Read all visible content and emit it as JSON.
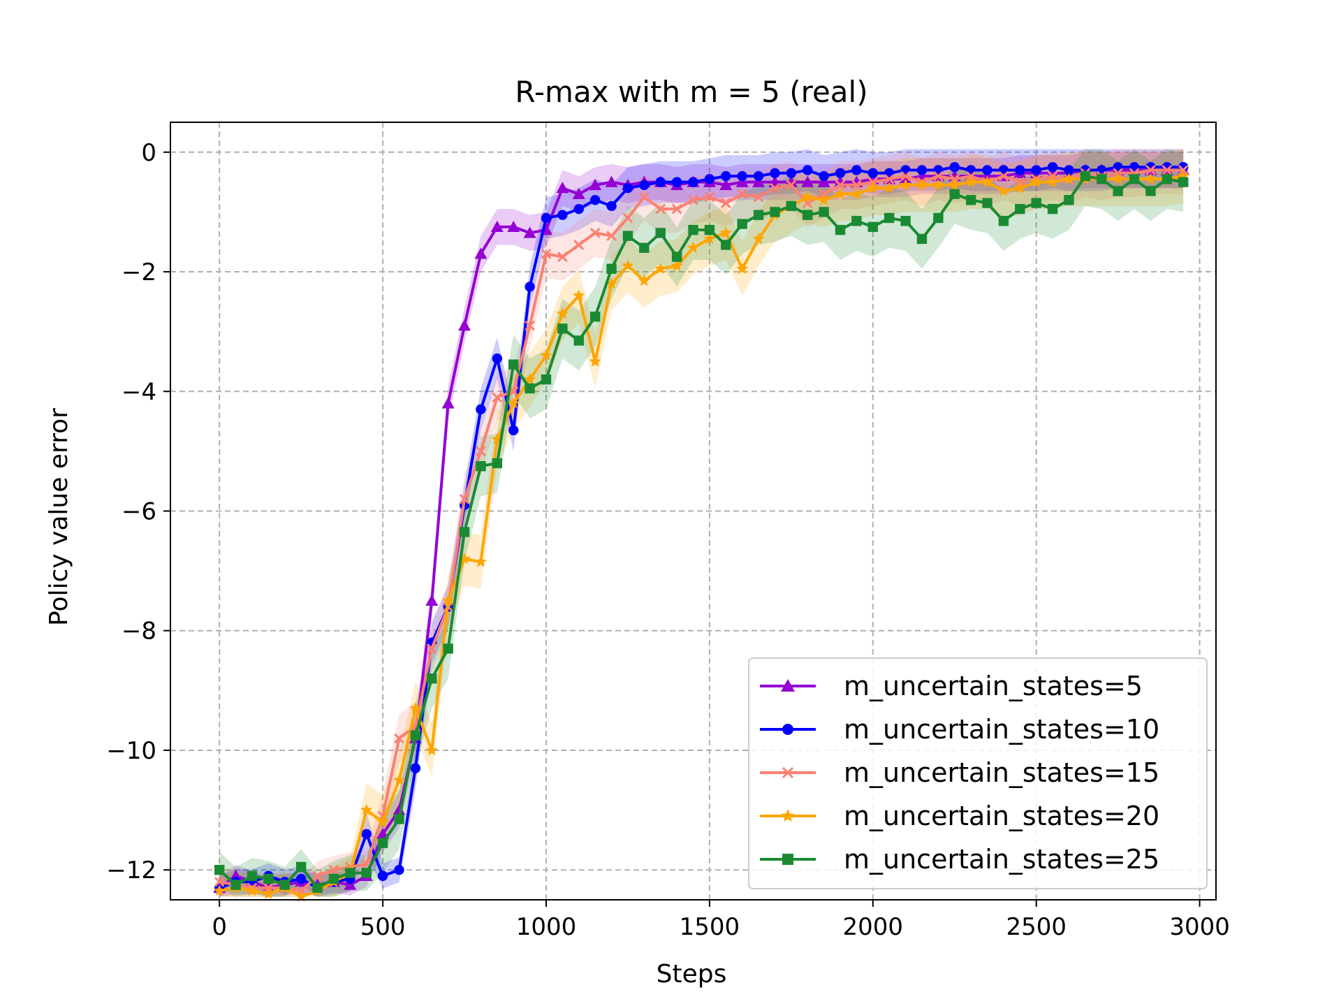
{
  "chart_data": {
    "type": "line",
    "title": "R-max with m = 5 (real)",
    "xlabel": "Steps",
    "ylabel": "Policy value error",
    "xlim": [
      -150,
      3050
    ],
    "ylim": [
      -12.5,
      0.5
    ],
    "xticks": [
      0,
      500,
      1000,
      1500,
      2000,
      2500,
      3000
    ],
    "xtick_labels": [
      "0",
      "500",
      "1000",
      "1500",
      "2000",
      "2500",
      "3000"
    ],
    "yticks": [
      0,
      -2,
      -4,
      -6,
      -8,
      -10,
      -12
    ],
    "ytick_labels": [
      "0",
      "−2",
      "−4",
      "−6",
      "−8",
      "−10",
      "−12"
    ],
    "grid": true,
    "legend_position": "lower-right",
    "series": [
      {
        "name": "m_uncertain_states=5",
        "color": "#9400d3",
        "marker": "triangle",
        "band": 0.3,
        "points": [
          [
            0,
            -12.3
          ],
          [
            50,
            -12.1
          ],
          [
            100,
            -12.2
          ],
          [
            150,
            -12.3
          ],
          [
            200,
            -12.25
          ],
          [
            250,
            -12.2
          ],
          [
            300,
            -12.25
          ],
          [
            350,
            -12.2
          ],
          [
            400,
            -12.25
          ],
          [
            450,
            -12.1
          ],
          [
            500,
            -11.4
          ],
          [
            550,
            -11.0
          ],
          [
            600,
            -9.8
          ],
          [
            650,
            -7.5
          ],
          [
            700,
            -4.2
          ],
          [
            750,
            -2.9
          ],
          [
            800,
            -1.7
          ],
          [
            850,
            -1.25
          ],
          [
            900,
            -1.25
          ],
          [
            950,
            -1.35
          ],
          [
            1000,
            -1.3
          ],
          [
            1050,
            -0.6
          ],
          [
            1100,
            -0.7
          ],
          [
            1150,
            -0.55
          ],
          [
            1200,
            -0.5
          ],
          [
            1250,
            -0.55
          ],
          [
            1300,
            -0.5
          ],
          [
            1350,
            -0.5
          ],
          [
            1400,
            -0.55
          ],
          [
            1450,
            -0.5
          ],
          [
            1500,
            -0.5
          ],
          [
            1550,
            -0.55
          ],
          [
            1600,
            -0.5
          ],
          [
            1650,
            -0.5
          ],
          [
            1700,
            -0.5
          ],
          [
            1750,
            -0.5
          ],
          [
            1800,
            -0.5
          ],
          [
            1850,
            -0.5
          ],
          [
            1900,
            -0.5
          ],
          [
            1950,
            -0.5
          ],
          [
            2000,
            -0.45
          ],
          [
            2050,
            -0.45
          ],
          [
            2100,
            -0.45
          ],
          [
            2150,
            -0.4
          ],
          [
            2200,
            -0.4
          ],
          [
            2250,
            -0.4
          ],
          [
            2300,
            -0.4
          ],
          [
            2350,
            -0.4
          ],
          [
            2400,
            -0.4
          ],
          [
            2450,
            -0.35
          ],
          [
            2500,
            -0.35
          ],
          [
            2550,
            -0.35
          ],
          [
            2600,
            -0.35
          ],
          [
            2650,
            -0.3
          ],
          [
            2700,
            -0.3
          ],
          [
            2750,
            -0.3
          ],
          [
            2800,
            -0.3
          ],
          [
            2850,
            -0.3
          ],
          [
            2900,
            -0.3
          ],
          [
            2950,
            -0.3
          ]
        ]
      },
      {
        "name": "m_uncertain_states=10",
        "color": "#0000ff",
        "marker": "circle",
        "band": 0.35,
        "points": [
          [
            0,
            -12.3
          ],
          [
            50,
            -12.2
          ],
          [
            100,
            -12.2
          ],
          [
            150,
            -12.1
          ],
          [
            200,
            -12.2
          ],
          [
            250,
            -12.15
          ],
          [
            300,
            -12.3
          ],
          [
            350,
            -12.2
          ],
          [
            400,
            -12.15
          ],
          [
            450,
            -11.4
          ],
          [
            500,
            -12.1
          ],
          [
            550,
            -12.0
          ],
          [
            600,
            -10.3
          ],
          [
            650,
            -8.2
          ],
          [
            700,
            -7.6
          ],
          [
            750,
            -5.9
          ],
          [
            800,
            -4.3
          ],
          [
            850,
            -3.45
          ],
          [
            900,
            -4.65
          ],
          [
            950,
            -2.25
          ],
          [
            1000,
            -1.1
          ],
          [
            1050,
            -1.05
          ],
          [
            1100,
            -0.95
          ],
          [
            1150,
            -0.8
          ],
          [
            1200,
            -0.9
          ],
          [
            1250,
            -0.6
          ],
          [
            1300,
            -0.55
          ],
          [
            1350,
            -0.5
          ],
          [
            1400,
            -0.5
          ],
          [
            1450,
            -0.5
          ],
          [
            1500,
            -0.45
          ],
          [
            1550,
            -0.4
          ],
          [
            1600,
            -0.4
          ],
          [
            1650,
            -0.4
          ],
          [
            1700,
            -0.35
          ],
          [
            1750,
            -0.35
          ],
          [
            1800,
            -0.3
          ],
          [
            1850,
            -0.4
          ],
          [
            1900,
            -0.35
          ],
          [
            1950,
            -0.3
          ],
          [
            2000,
            -0.35
          ],
          [
            2050,
            -0.35
          ],
          [
            2100,
            -0.3
          ],
          [
            2150,
            -0.3
          ],
          [
            2200,
            -0.3
          ],
          [
            2250,
            -0.25
          ],
          [
            2300,
            -0.3
          ],
          [
            2350,
            -0.3
          ],
          [
            2400,
            -0.3
          ],
          [
            2450,
            -0.3
          ],
          [
            2500,
            -0.3
          ],
          [
            2550,
            -0.25
          ],
          [
            2600,
            -0.3
          ],
          [
            2650,
            -0.3
          ],
          [
            2700,
            -0.3
          ],
          [
            2750,
            -0.25
          ],
          [
            2800,
            -0.25
          ],
          [
            2850,
            -0.25
          ],
          [
            2900,
            -0.25
          ],
          [
            2950,
            -0.25
          ]
        ]
      },
      {
        "name": "m_uncertain_states=15",
        "color": "#fa8072",
        "marker": "x",
        "band": 0.4,
        "points": [
          [
            0,
            -12.2
          ],
          [
            50,
            -12.25
          ],
          [
            100,
            -12.3
          ],
          [
            150,
            -12.3
          ],
          [
            200,
            -12.3
          ],
          [
            250,
            -12.35
          ],
          [
            300,
            -12.1
          ],
          [
            350,
            -12.0
          ],
          [
            400,
            -11.95
          ],
          [
            450,
            -11.9
          ],
          [
            500,
            -11.1
          ],
          [
            550,
            -9.8
          ],
          [
            600,
            -9.6
          ],
          [
            650,
            -8.3
          ],
          [
            700,
            -7.6
          ],
          [
            750,
            -5.8
          ],
          [
            800,
            -5.0
          ],
          [
            850,
            -4.1
          ],
          [
            900,
            -4.0
          ],
          [
            950,
            -2.9
          ],
          [
            1000,
            -1.7
          ],
          [
            1050,
            -1.75
          ],
          [
            1100,
            -1.55
          ],
          [
            1150,
            -1.35
          ],
          [
            1200,
            -1.4
          ],
          [
            1250,
            -1.1
          ],
          [
            1300,
            -0.75
          ],
          [
            1350,
            -0.95
          ],
          [
            1400,
            -0.95
          ],
          [
            1450,
            -0.8
          ],
          [
            1500,
            -0.75
          ],
          [
            1550,
            -0.85
          ],
          [
            1600,
            -0.7
          ],
          [
            1650,
            -0.75
          ],
          [
            1700,
            -0.6
          ],
          [
            1750,
            -0.55
          ],
          [
            1800,
            -0.85
          ],
          [
            1850,
            -0.7
          ],
          [
            1900,
            -0.55
          ],
          [
            1950,
            -0.55
          ],
          [
            2000,
            -0.5
          ],
          [
            2050,
            -0.45
          ],
          [
            2100,
            -0.4
          ],
          [
            2150,
            -0.5
          ],
          [
            2200,
            -0.4
          ],
          [
            2250,
            -0.45
          ],
          [
            2300,
            -0.4
          ],
          [
            2350,
            -0.5
          ],
          [
            2400,
            -0.4
          ],
          [
            2450,
            -0.5
          ],
          [
            2500,
            -0.45
          ],
          [
            2550,
            -0.4
          ],
          [
            2600,
            -0.45
          ],
          [
            2650,
            -0.35
          ],
          [
            2700,
            -0.4
          ],
          [
            2750,
            -0.35
          ],
          [
            2800,
            -0.35
          ],
          [
            2850,
            -0.3
          ],
          [
            2900,
            -0.3
          ],
          [
            2950,
            -0.3
          ]
        ]
      },
      {
        "name": "m_uncertain_states=20",
        "color": "#ffa500",
        "marker": "star",
        "band": 0.45,
        "points": [
          [
            0,
            -12.35
          ],
          [
            50,
            -12.3
          ],
          [
            100,
            -12.35
          ],
          [
            150,
            -12.4
          ],
          [
            200,
            -12.3
          ],
          [
            250,
            -12.45
          ],
          [
            300,
            -12.35
          ],
          [
            350,
            -12.2
          ],
          [
            400,
            -12.05
          ],
          [
            450,
            -11.0
          ],
          [
            500,
            -11.2
          ],
          [
            550,
            -10.5
          ],
          [
            600,
            -9.3
          ],
          [
            650,
            -10.0
          ],
          [
            700,
            -7.5
          ],
          [
            750,
            -6.8
          ],
          [
            800,
            -6.85
          ],
          [
            850,
            -4.8
          ],
          [
            900,
            -4.2
          ],
          [
            950,
            -3.8
          ],
          [
            1000,
            -3.4
          ],
          [
            1050,
            -2.7
          ],
          [
            1100,
            -2.4
          ],
          [
            1150,
            -3.5
          ],
          [
            1200,
            -2.2
          ],
          [
            1250,
            -1.9
          ],
          [
            1300,
            -2.15
          ],
          [
            1350,
            -1.95
          ],
          [
            1400,
            -1.9
          ],
          [
            1450,
            -1.6
          ],
          [
            1500,
            -1.45
          ],
          [
            1550,
            -1.35
          ],
          [
            1600,
            -1.95
          ],
          [
            1650,
            -1.45
          ],
          [
            1700,
            -1.05
          ],
          [
            1750,
            -0.9
          ],
          [
            1800,
            -0.75
          ],
          [
            1850,
            -0.8
          ],
          [
            1900,
            -0.7
          ],
          [
            1950,
            -0.7
          ],
          [
            2000,
            -0.6
          ],
          [
            2050,
            -0.6
          ],
          [
            2100,
            -0.55
          ],
          [
            2150,
            -0.55
          ],
          [
            2200,
            -0.55
          ],
          [
            2250,
            -0.55
          ],
          [
            2300,
            -0.5
          ],
          [
            2350,
            -0.5
          ],
          [
            2400,
            -0.65
          ],
          [
            2450,
            -0.6
          ],
          [
            2500,
            -0.5
          ],
          [
            2550,
            -0.5
          ],
          [
            2600,
            -0.45
          ],
          [
            2650,
            -0.45
          ],
          [
            2700,
            -0.45
          ],
          [
            2750,
            -0.45
          ],
          [
            2800,
            -0.45
          ],
          [
            2850,
            -0.45
          ],
          [
            2900,
            -0.45
          ],
          [
            2950,
            -0.4
          ]
        ]
      },
      {
        "name": "m_uncertain_states=25",
        "color": "#1a8a32",
        "marker": "square",
        "band": 0.5,
        "points": [
          [
            0,
            -12.0
          ],
          [
            50,
            -12.25
          ],
          [
            100,
            -12.1
          ],
          [
            150,
            -12.15
          ],
          [
            200,
            -12.25
          ],
          [
            250,
            -11.95
          ],
          [
            300,
            -12.3
          ],
          [
            350,
            -12.15
          ],
          [
            400,
            -12.05
          ],
          [
            450,
            -12.05
          ],
          [
            500,
            -11.55
          ],
          [
            550,
            -11.15
          ],
          [
            600,
            -9.75
          ],
          [
            650,
            -8.8
          ],
          [
            700,
            -8.3
          ],
          [
            750,
            -6.35
          ],
          [
            800,
            -5.25
          ],
          [
            850,
            -5.2
          ],
          [
            900,
            -3.55
          ],
          [
            950,
            -3.95
          ],
          [
            1000,
            -3.8
          ],
          [
            1050,
            -2.95
          ],
          [
            1100,
            -3.15
          ],
          [
            1150,
            -2.75
          ],
          [
            1200,
            -1.95
          ],
          [
            1250,
            -1.4
          ],
          [
            1300,
            -1.6
          ],
          [
            1350,
            -1.35
          ],
          [
            1400,
            -1.75
          ],
          [
            1450,
            -1.3
          ],
          [
            1500,
            -1.3
          ],
          [
            1550,
            -1.55
          ],
          [
            1600,
            -1.2
          ],
          [
            1650,
            -1.05
          ],
          [
            1700,
            -1.0
          ],
          [
            1750,
            -0.9
          ],
          [
            1800,
            -1.05
          ],
          [
            1850,
            -1.0
          ],
          [
            1900,
            -1.3
          ],
          [
            1950,
            -1.15
          ],
          [
            2000,
            -1.25
          ],
          [
            2050,
            -1.1
          ],
          [
            2100,
            -1.15
          ],
          [
            2150,
            -1.45
          ],
          [
            2200,
            -1.1
          ],
          [
            2250,
            -0.7
          ],
          [
            2300,
            -0.8
          ],
          [
            2350,
            -0.85
          ],
          [
            2400,
            -1.15
          ],
          [
            2450,
            -0.95
          ],
          [
            2500,
            -0.85
          ],
          [
            2550,
            -0.95
          ],
          [
            2600,
            -0.8
          ],
          [
            2650,
            -0.4
          ],
          [
            2700,
            -0.45
          ],
          [
            2750,
            -0.65
          ],
          [
            2800,
            -0.45
          ],
          [
            2850,
            -0.65
          ],
          [
            2900,
            -0.45
          ],
          [
            2950,
            -0.5
          ]
        ]
      }
    ]
  }
}
